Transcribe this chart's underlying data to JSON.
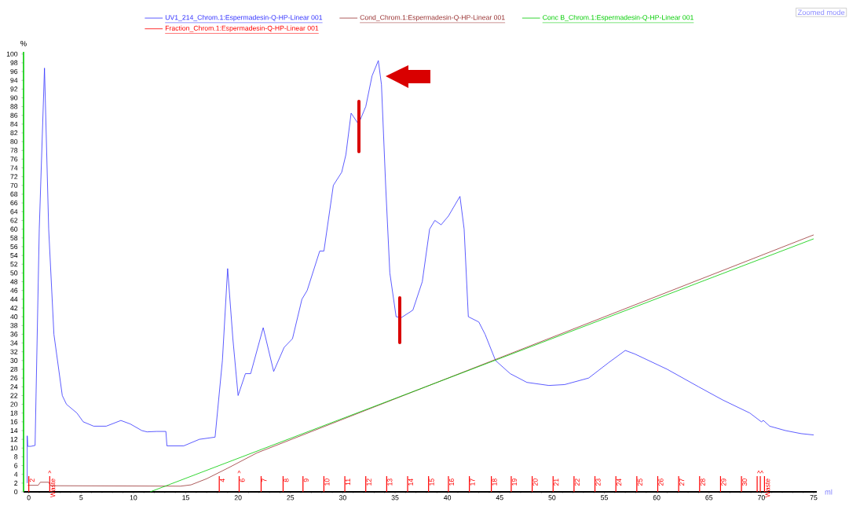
{
  "chart_data": {
    "type": "line",
    "xlabel": "ml",
    "ylabel": "%",
    "xlim": [
      -0.5,
      75.3
    ],
    "ylim": [
      0,
      100.5
    ],
    "xticks": [
      0,
      5,
      10,
      15,
      20,
      25,
      30,
      35,
      40,
      45,
      50,
      55,
      60,
      65,
      70,
      75
    ],
    "yticks": [
      0,
      2,
      4,
      6,
      8,
      10,
      12,
      14,
      16,
      18,
      20,
      22,
      24,
      26,
      28,
      30,
      32,
      34,
      36,
      38,
      40,
      42,
      44,
      46,
      48,
      50,
      52,
      54,
      56,
      58,
      60,
      62,
      64,
      66,
      68,
      70,
      72,
      74,
      76,
      78,
      80,
      82,
      84,
      86,
      88,
      90,
      92,
      94,
      96,
      98,
      100
    ],
    "legend": "top",
    "marker": "none",
    "line_style": "solid",
    "series": [
      {
        "name": "UV1_214_Chrom.1:Espermadesin-Q-HP-Linear 001",
        "color": "#3333ff",
        "x": [
          -0.15,
          -0.15,
          -0.1,
          0.2,
          0.6,
          1.0,
          1.5,
          1.9,
          2.4,
          3.2,
          3.6,
          4.6,
          5.2,
          6.2,
          7.4,
          8.8,
          9.7,
          10.8,
          11.3,
          12.2,
          13.1,
          13.2,
          14.8,
          16.3,
          17.8,
          18.5,
          19.0,
          19.5,
          20.0,
          20.7,
          21.2,
          22.4,
          23.4,
          24.4,
          25.2,
          26.1,
          26.6,
          27.8,
          28.2,
          29.1,
          29.9,
          30.3,
          30.8,
          31.5,
          32.2,
          32.8,
          33.4,
          33.7,
          34.1,
          34.5,
          35.1,
          35.6,
          36.7,
          37.6,
          38.3,
          38.8,
          39.4,
          40.1,
          41.2,
          41.6,
          42.0,
          43.0,
          43.6,
          44.6,
          46.0,
          47.6,
          49.7,
          51.2,
          53.5,
          55.4,
          57.0,
          57.9,
          61.0,
          64.0,
          66.3,
          68.9,
          70.0,
          70.2,
          70.8,
          72.3,
          73.8,
          75.0
        ],
        "values": [
          2,
          12.8,
          10.4,
          10.4,
          10.6,
          60,
          96.8,
          60,
          36,
          22,
          20,
          18,
          16,
          15,
          15,
          16.3,
          15.5,
          14,
          13.7,
          13.8,
          13.8,
          10.5,
          10.5,
          12,
          12.5,
          30,
          51,
          35,
          22,
          27,
          27,
          37.5,
          27.5,
          33,
          35,
          44,
          46,
          55,
          55,
          70,
          73,
          77,
          86.5,
          84,
          88,
          95,
          98.5,
          93,
          70,
          50,
          40,
          39.8,
          41.5,
          48,
          60,
          62,
          61,
          63,
          67.5,
          60,
          40,
          38.8,
          36,
          30,
          27,
          25,
          24.3,
          24.5,
          26,
          29.5,
          32.3,
          31.5,
          28,
          24,
          21,
          18,
          16,
          16.3,
          15,
          14,
          13.3,
          13
        ]
      },
      {
        "name": "Cond_Chrom.1:Espermadesin-Q-HP-Linear 001",
        "color": "#993333",
        "x": [
          -0.1,
          0.9,
          1.1,
          1.9,
          2.1,
          14.5,
          15.5,
          17.0,
          19.0,
          21.8,
          75.0
        ],
        "values": [
          1.5,
          1.5,
          2.2,
          2.2,
          1.4,
          1.3,
          1.6,
          3.0,
          5.4,
          8.9,
          58.7
        ]
      },
      {
        "name": "Conc B_Chrom.1:Espermadesin-Q-HP-Linear 001",
        "color": "#00cc00",
        "x": [
          11.6,
          75.0
        ],
        "values": [
          0,
          57.8
        ]
      },
      {
        "name": "Fraction_Chrom.1:Espermadesin-Q-HP-Linear 001",
        "color": "#ff0000",
        "type": "bar",
        "x": [
          0.0,
          2.0,
          18.2,
          20.1,
          22.2,
          24.3,
          26.2,
          28.2,
          30.2,
          32.2,
          34.2,
          36.2,
          38.2,
          40.1,
          42.1,
          44.2,
          46.1,
          48.1,
          50.1,
          52.1,
          54.1,
          56.1,
          58.1,
          60.1,
          62.1,
          64.1,
          66.1,
          68.1,
          69.6,
          69.9,
          70.3
        ],
        "values": [
          3.6,
          3.6,
          3.6,
          3.6,
          3.6,
          3.6,
          3.6,
          3.6,
          3.6,
          3.6,
          3.6,
          3.6,
          3.6,
          3.6,
          3.6,
          3.6,
          3.6,
          3.6,
          3.6,
          3.6,
          3.6,
          3.6,
          3.6,
          3.6,
          3.6,
          3.6,
          3.6,
          3.6,
          3.6,
          3.6,
          3.6
        ]
      }
    ],
    "annotations": [
      "Zoomed mode",
      {
        "text": "^",
        "x": 2.0,
        "y": 3.6
      },
      {
        "text": "^",
        "x": 20.1,
        "y": 3.6
      },
      {
        "text": "^^",
        "x": 69.9,
        "y": 3.6
      },
      {
        "text": "2",
        "x": 0.0,
        "y": 3.6
      },
      {
        "text": "Waste",
        "x": 2.0,
        "y": 3.6
      },
      {
        "text": "4",
        "x": 18.2,
        "y": 3.6
      },
      {
        "text": "6",
        "x": 20.1,
        "y": 3.6
      },
      {
        "text": "7",
        "x": 22.2,
        "y": 3.6
      },
      {
        "text": "8",
        "x": 24.3,
        "y": 3.6
      },
      {
        "text": "9",
        "x": 26.2,
        "y": 3.6
      },
      {
        "text": "10",
        "x": 28.2,
        "y": 3.6
      },
      {
        "text": "11",
        "x": 30.2,
        "y": 3.6
      },
      {
        "text": "12",
        "x": 32.2,
        "y": 3.6
      },
      {
        "text": "13",
        "x": 34.2,
        "y": 3.6
      },
      {
        "text": "14",
        "x": 36.2,
        "y": 3.6
      },
      {
        "text": "15",
        "x": 38.2,
        "y": 3.6
      },
      {
        "text": "16",
        "x": 40.1,
        "y": 3.6
      },
      {
        "text": "17",
        "x": 42.1,
        "y": 3.6
      },
      {
        "text": "18",
        "x": 44.2,
        "y": 3.6
      },
      {
        "text": "19",
        "x": 46.1,
        "y": 3.6
      },
      {
        "text": "20",
        "x": 48.1,
        "y": 3.6
      },
      {
        "text": "21",
        "x": 50.1,
        "y": 3.6
      },
      {
        "text": "22",
        "x": 52.1,
        "y": 3.6
      },
      {
        "text": "23",
        "x": 54.1,
        "y": 3.6
      },
      {
        "text": "24",
        "x": 56.1,
        "y": 3.6
      },
      {
        "text": "25",
        "x": 58.1,
        "y": 3.6
      },
      {
        "text": "26",
        "x": 60.1,
        "y": 3.6
      },
      {
        "text": "27",
        "x": 62.1,
        "y": 3.6
      },
      {
        "text": "28",
        "x": 64.1,
        "y": 3.6
      },
      {
        "text": "29",
        "x": 66.1,
        "y": 3.6
      },
      {
        "text": "30",
        "x": 68.1,
        "y": 3.6
      },
      {
        "text": "Waste",
        "x": 70.3,
        "y": 3.6
      }
    ]
  }
}
